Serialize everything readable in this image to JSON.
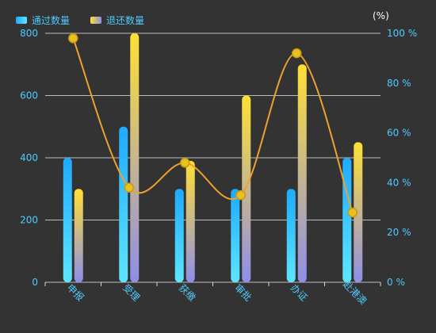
{
  "legend": {
    "series1": "通过数量",
    "series2": "退还数量"
  },
  "right_axis_unit": "(%)",
  "colors": {
    "axis_text": "#4ecbff",
    "grid": "#ffffff",
    "bar1_top": "#1eaaff",
    "bar1_bottom": "#5ee6ff",
    "bar2_top": "#ffe033",
    "bar2_bottom": "#8e8ee8",
    "line": "#f0a030",
    "marker": "#e8c020",
    "background": "#333333"
  },
  "chart_data": {
    "type": "bar",
    "categories": [
      "申报",
      "受理",
      "获缴",
      "审批",
      "办证",
      "赴港澳"
    ],
    "series": [
      {
        "name": "通过数量",
        "type": "bar",
        "axis": "left",
        "values": [
          400,
          500,
          300,
          300,
          300,
          400
        ]
      },
      {
        "name": "退还数量",
        "type": "bar",
        "axis": "left",
        "values": [
          300,
          800,
          390,
          600,
          700,
          450
        ]
      },
      {
        "name": "",
        "type": "line",
        "axis": "right",
        "values": [
          98,
          38,
          48,
          35,
          92,
          28
        ]
      }
    ],
    "left_axis": {
      "min": 0,
      "max": 800,
      "ticks": [
        0,
        200,
        400,
        600,
        800
      ]
    },
    "right_axis": {
      "min": 0,
      "max": 100,
      "ticks": [
        "0 %",
        "20 %",
        "40 %",
        "60 %",
        "80 %",
        "100 %"
      ],
      "unit": "(%)"
    },
    "grid": true,
    "legend_position": "top-left"
  }
}
